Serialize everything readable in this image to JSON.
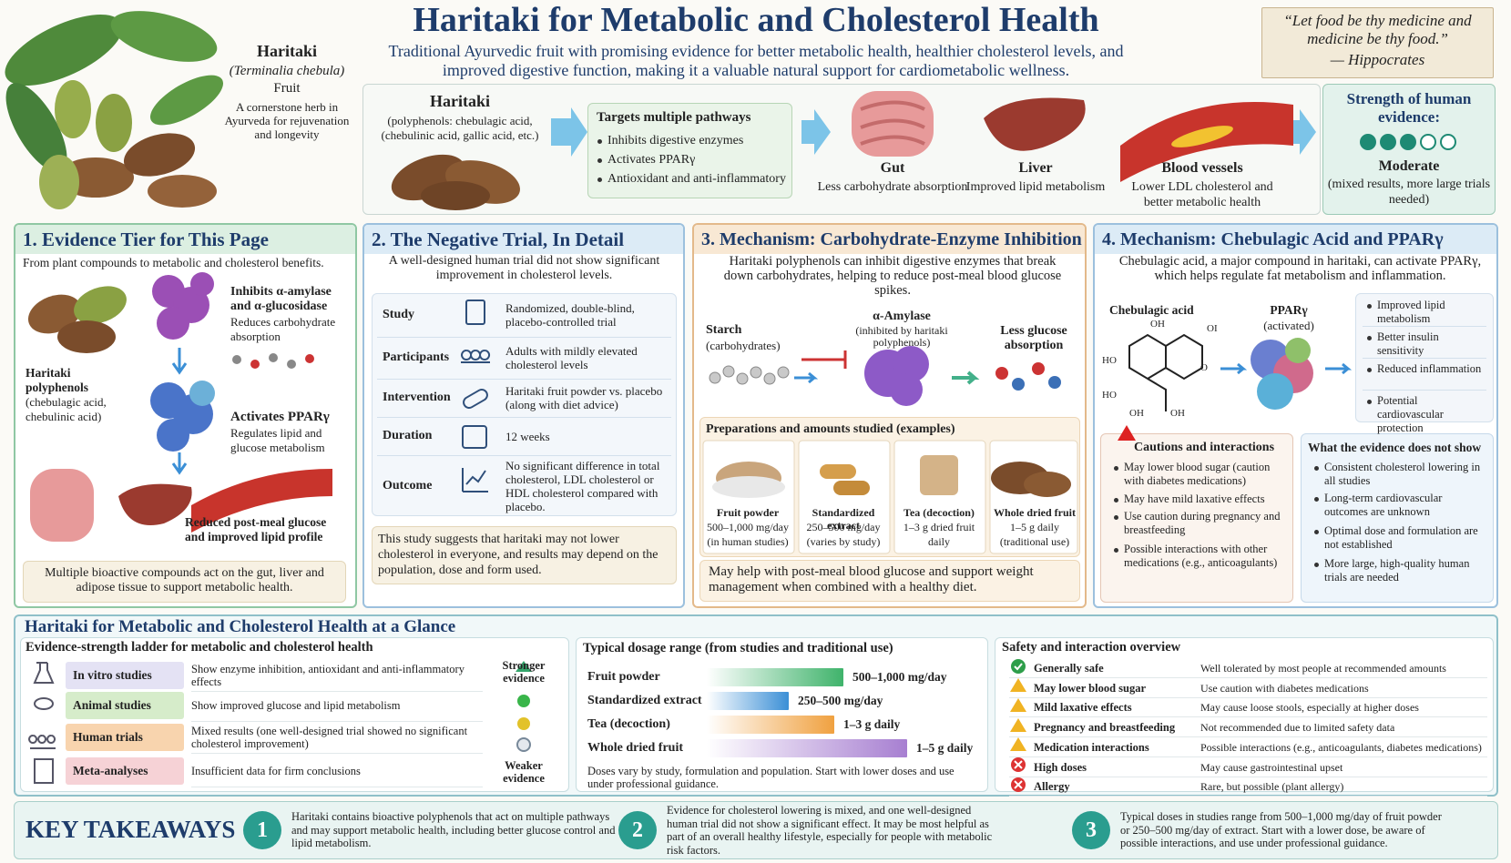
{
  "header": {
    "title": "Haritaki for Metabolic and Cholesterol Health",
    "subtitle": "Traditional Ayurvedic fruit with promising evidence for better metabolic health, healthier cholesterol levels, and improved digestive function, making it a valuable natural support for cardiometabolic wellness.",
    "quote": "“Let food be thy medicine and medicine be thy food.”",
    "quote_author": "— Hippocrates"
  },
  "hero": {
    "name": "Haritaki",
    "latin": "(Terminalia chebula)",
    "part": "Fruit",
    "description": "A cornerstone herb in Ayurveda for rejuvenation and longevity"
  },
  "pathway": {
    "source": {
      "name": "Haritaki",
      "description": "(polyphenols: chebulagic acid, (chebulinic acid, gallic acid, etc.)"
    },
    "targets": {
      "title": "Targets multiple pathways",
      "items": [
        "Inhibits digestive enzymes",
        "Activates PPARγ",
        "Antioxidant and anti-inflammatory"
      ]
    },
    "organs": [
      {
        "name": "Gut",
        "effect": "Less carbohydrate absorption"
      },
      {
        "name": "Liver",
        "effect": "Improved lipid metabolism"
      },
      {
        "name": "Blood vessels",
        "effect": "Lower LDL cholesterol and better metabolic health"
      }
    ],
    "strength": {
      "title": "Strength of human evidence:",
      "level": "Moderate",
      "note": "(mixed results, more large trials needed)"
    }
  },
  "evidence_tier": {
    "heading": "1.  Evidence Tier for This Page",
    "subtitle": "From plant compounds to metabolic and cholesterol benefits.",
    "source": "Haritaki polyphenols",
    "source_detail": "(chebulagic acid, chebulinic acid)",
    "steps": [
      {
        "title": "Inhibits α-amylase and α-glucosidase",
        "detail": "Reduces carbohydrate absorption"
      },
      {
        "title": "Activates PPARγ",
        "detail": "Regulates lipid and glucose metabolism"
      }
    ],
    "outcome": "Reduced post-meal glucose and improved lipid profile",
    "note": "Multiple bioactive compounds act on the gut, liver and adipose tissue to support metabolic health."
  },
  "negative_trial": {
    "heading": "2.  The Negative Trial, In Detail",
    "subtitle": "A well-designed human trial did not show significant improvement in cholesterol levels.",
    "rows": [
      [
        "Study",
        "Randomized, double-blind, placebo-controlled trial"
      ],
      [
        "Participants",
        "Adults with mildly elevated cholesterol levels"
      ],
      [
        "Intervention",
        "Haritaki fruit powder vs. placebo (along with diet advice)"
      ],
      [
        "Duration",
        "12 weeks"
      ],
      [
        "Outcome",
        "No significant difference in total cholesterol, LDL cholesterol or HDL cholesterol compared with placebo."
      ]
    ],
    "note": "This study suggests that haritaki may not lower cholesterol in everyone, and results may depend on the population, dose and form used."
  },
  "mechanism_carb": {
    "heading": "3.  Mechanism: Carbohydrate-Enzyme Inhibition",
    "subtitle": "Haritaki polyphenols can inhibit digestive enzymes that break down carbohydrates, helping to reduce post-meal blood glucose spikes.",
    "starch": "Starch",
    "starch_detail": "(carbohydrates)",
    "enzyme": "α-Amylase",
    "enzyme_detail": "(inhibited by haritaki polyphenols)",
    "result": "Less glucose absorption",
    "preparations_title": "Preparations and amounts studied (examples)",
    "preparations": [
      {
        "name": "Fruit powder",
        "amount": "500–1,000 mg/day",
        "note": "(in human studies)"
      },
      {
        "name": "Standardized extract",
        "amount": "250–500 mg/day",
        "note": "(varies by study)"
      },
      {
        "name": "Tea (decoction)",
        "amount": "1–3 g dried fruit",
        "note": "daily"
      },
      {
        "name": "Whole dried fruit",
        "amount": "1–5 g daily",
        "note": "(traditional use)"
      }
    ],
    "note": "May help with post-meal blood glucose and support weight management when combined with a healthy diet."
  },
  "mechanism_ppar": {
    "heading": "4.  Mechanism: Chebulagic Acid and PPARγ",
    "subtitle": "Chebulagic acid, a major compound in haritaki, can activate PPARγ, which helps regulate fat metabolism and inflammation.",
    "compound": "Chebulagic acid",
    "structure_labels": [
      "OH",
      "OI",
      "HO",
      "HO",
      "OH",
      "OH",
      "O"
    ],
    "receptor": "PPARγ",
    "receptor_state": "(activated)",
    "benefits": [
      "Improved lipid metabolism",
      "Better insulin sensitivity",
      "Reduced inflammation",
      "Potential cardiovascular protection"
    ],
    "cautions": {
      "title": "Cautions and interactions",
      "items": [
        "May lower blood sugar (caution with diabetes medications)",
        "May have mild laxative effects",
        "Use caution during pregnancy and breastfeeding",
        "Possible interactions with other medications (e.g., anticoagulants)"
      ]
    },
    "limits": {
      "title": "What the evidence does not show",
      "items": [
        "Consistent cholesterol lowering in all studies",
        "Long-term cardiovascular outcomes are unknown",
        "Optimal dose and formulation are not established",
        "More large, high-quality human trials are needed"
      ]
    }
  },
  "glance": {
    "title": "Haritaki for Metabolic and Cholesterol Health at a Glance",
    "ladder": {
      "title": "Evidence-strength ladder for metabolic and cholesterol health",
      "rows": [
        {
          "level": "In vitro studies",
          "finding": "Show enzyme inhibition, antioxidant and anti-inflammatory effects",
          "color": "#e4e2f4"
        },
        {
          "level": "Animal studies",
          "finding": "Show improved glucose and lipid metabolism",
          "color": "#d6ecca"
        },
        {
          "level": "Human trials",
          "finding": "Mixed results (one well-designed trial showed no significant cholesterol improvement)",
          "color": "#f8d4ae"
        },
        {
          "level": "Meta-analyses",
          "finding": "Insufficient data for firm conclusions",
          "color": "#f6d2d6"
        }
      ],
      "top": "Stronger evidence",
      "bottom": "Weaker evidence"
    },
    "dosage": {
      "title": "Typical dosage range (from studies and traditional use)",
      "rows": [
        {
          "form": "Fruit powder",
          "range": "500–1,000 mg/day",
          "color": "#3fb36b"
        },
        {
          "form": "Standardized extract",
          "range": "250–500 mg/day",
          "color": "#3b8fd6"
        },
        {
          "form": "Tea (decoction)",
          "range": "1–3 g daily",
          "color": "#f0a140"
        },
        {
          "form": "Whole dried fruit",
          "range": "1–5 g daily",
          "color": "#a77fd1"
        }
      ],
      "note": "Doses vary by study, formulation and population. Start with lower doses and use under professional guidance."
    },
    "safety": {
      "title": "Safety and interaction overview",
      "rows": [
        {
          "topic": "Generally safe",
          "detail": "Well tolerated by most people at recommended amounts"
        },
        {
          "topic": "May lower blood sugar",
          "detail": "Use caution with diabetes medications"
        },
        {
          "topic": "Mild laxative effects",
          "detail": "May cause loose stools, especially at higher doses"
        },
        {
          "topic": "Pregnancy and breastfeeding",
          "detail": "Not recommended due to limited safety data"
        },
        {
          "topic": "Medication interactions",
          "detail": "Possible interactions (e.g., anticoagulants, diabetes medications)"
        },
        {
          "topic": "High doses",
          "detail": "May cause gastrointestinal upset"
        },
        {
          "topic": "Allergy",
          "detail": "Rare, but possible (plant allergy)"
        }
      ]
    }
  },
  "takeaways": {
    "title": "KEY TAKEAWAYS",
    "items": [
      {
        "number": "1",
        "text": "Haritaki contains bioactive polyphenols that act on multiple pathways and may support metabolic health, including better glucose control and lipid metabolism."
      },
      {
        "number": "2",
        "text": "Evidence for cholesterol lowering is mixed, and one well-designed human trial did not show a significant effect. It may be most helpful as part of an overall healthy lifestyle, especially for people with metabolic risk factors."
      },
      {
        "number": "3",
        "text": "Typical doses in studies range from 500–1,000 mg/day of fruit powder or 250–500 mg/day of extract. Start with a lower dose, be aware of possible interactions, and use under professional guidance."
      }
    ]
  }
}
